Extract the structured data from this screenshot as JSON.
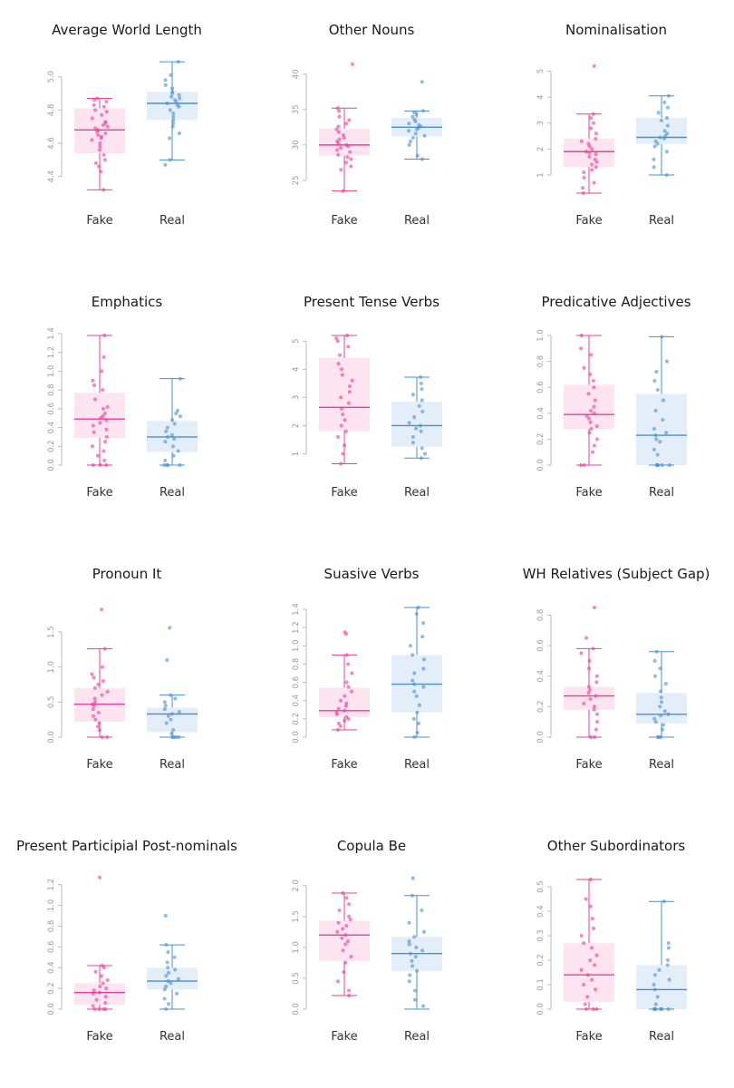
{
  "colors": {
    "fake": "#e8409a",
    "fake_box": "#fde4f0",
    "real": "#4a8fd0",
    "real_box": "#e4eef9",
    "axis": "#bbbbbb"
  },
  "chart_data": [
    {
      "type": "box",
      "title": "Average World Length",
      "categories": [
        "Fake",
        "Real"
      ],
      "ylim": [
        4.3,
        5.08
      ],
      "yticks": [
        4.4,
        4.6,
        4.8,
        5.0
      ],
      "tick_labels": [
        "4.4",
        "4.6",
        "4.8",
        "5.0"
      ],
      "series": [
        {
          "name": "Fake",
          "min": 4.32,
          "q1": 4.54,
          "median": 4.68,
          "q3": 4.81,
          "max": 4.87,
          "points": [
            4.32,
            4.43,
            4.46,
            4.48,
            4.5,
            4.53,
            4.56,
            4.58,
            4.6,
            4.62,
            4.63,
            4.64,
            4.65,
            4.66,
            4.67,
            4.68,
            4.69,
            4.7,
            4.71,
            4.72,
            4.73,
            4.75,
            4.77,
            4.79,
            4.8,
            4.82,
            4.83,
            4.85,
            4.86,
            4.87
          ]
        },
        {
          "name": "Real",
          "min": 4.5,
          "q1": 4.74,
          "median": 4.84,
          "q3": 4.91,
          "max": 5.09,
          "points": [
            4.47,
            4.5,
            4.63,
            4.66,
            4.7,
            4.72,
            4.74,
            4.76,
            4.78,
            4.8,
            4.82,
            4.83,
            4.84,
            4.85,
            4.86,
            4.87,
            4.88,
            4.89,
            4.9,
            4.91,
            4.93,
            4.95,
            4.98,
            5.01,
            5.09
          ]
        }
      ]
    },
    {
      "type": "box",
      "title": "Other Nouns",
      "categories": [
        "Fake",
        "Real"
      ],
      "ylim": [
        23.2,
        41.5
      ],
      "yticks": [
        25,
        30,
        35,
        40
      ],
      "tick_labels": [
        "25",
        "30",
        "35",
        "40"
      ],
      "series": [
        {
          "name": "Fake",
          "min": 23.5,
          "q1": 28.5,
          "median": 30.0,
          "q3": 32.3,
          "max": 35.2,
          "points": [
            23.5,
            26.5,
            27.0,
            27.5,
            28.0,
            28.3,
            28.6,
            29.0,
            29.3,
            29.6,
            29.8,
            30.0,
            30.2,
            30.5,
            30.8,
            31.0,
            31.4,
            31.8,
            32.2,
            32.6,
            33.0,
            33.5,
            34.0,
            34.8,
            35.2,
            41.4
          ]
        },
        {
          "name": "Real",
          "min": 28.0,
          "q1": 31.2,
          "median": 32.5,
          "q3": 33.8,
          "max": 34.8,
          "points": [
            28.0,
            28.5,
            30.0,
            30.5,
            31.0,
            31.3,
            31.6,
            32.0,
            32.2,
            32.4,
            32.6,
            32.8,
            33.0,
            33.3,
            33.6,
            34.0,
            34.3,
            34.6,
            34.8,
            38.9
          ]
        }
      ]
    },
    {
      "type": "box",
      "title": "Nominalisation",
      "categories": [
        "Fake",
        "Real"
      ],
      "ylim": [
        0.3,
        5.3
      ],
      "yticks": [
        1,
        2,
        3,
        4,
        5
      ],
      "tick_labels": [
        "1",
        "2",
        "3",
        "4",
        "5"
      ],
      "series": [
        {
          "name": "Fake",
          "min": 0.3,
          "q1": 1.3,
          "median": 1.9,
          "q3": 2.4,
          "max": 3.35,
          "points": [
            0.3,
            0.5,
            0.7,
            0.9,
            1.1,
            1.2,
            1.3,
            1.4,
            1.5,
            1.6,
            1.7,
            1.8,
            1.85,
            1.9,
            2.0,
            2.1,
            2.2,
            2.3,
            2.4,
            2.6,
            2.8,
            3.0,
            3.2,
            3.35,
            5.2
          ]
        },
        {
          "name": "Real",
          "min": 1.0,
          "q1": 2.2,
          "median": 2.45,
          "q3": 3.2,
          "max": 4.05,
          "points": [
            1.0,
            1.3,
            1.6,
            1.9,
            2.1,
            2.2,
            2.3,
            2.4,
            2.45,
            2.5,
            2.6,
            2.7,
            2.9,
            3.1,
            3.2,
            3.4,
            3.6,
            3.8,
            4.05
          ]
        }
      ]
    },
    {
      "type": "box",
      "title": "Emphatics",
      "categories": [
        "Fake",
        "Real"
      ],
      "ylim": [
        0,
        1.38
      ],
      "yticks": [
        0.0,
        0.2,
        0.4,
        0.6,
        0.8,
        1.0,
        1.2,
        1.4
      ],
      "tick_labels": [
        "0.0",
        "0.2",
        "0.4",
        "0.6",
        "0.8",
        "1.0",
        "1.2",
        "1.4"
      ],
      "series": [
        {
          "name": "Fake",
          "min": 0.0,
          "q1": 0.29,
          "median": 0.49,
          "q3": 0.77,
          "max": 1.38,
          "points": [
            0.0,
            0.0,
            0.0,
            0.05,
            0.1,
            0.15,
            0.2,
            0.25,
            0.3,
            0.35,
            0.38,
            0.42,
            0.45,
            0.48,
            0.5,
            0.52,
            0.55,
            0.6,
            0.62,
            0.7,
            0.8,
            0.85,
            0.9,
            1.0,
            1.15,
            1.38
          ]
        },
        {
          "name": "Real",
          "min": 0.0,
          "q1": 0.14,
          "median": 0.3,
          "q3": 0.47,
          "max": 0.92,
          "points": [
            0.0,
            0.0,
            0.0,
            0.0,
            0.05,
            0.1,
            0.15,
            0.2,
            0.25,
            0.28,
            0.3,
            0.32,
            0.36,
            0.4,
            0.44,
            0.48,
            0.52,
            0.55,
            0.58,
            0.92
          ]
        }
      ]
    },
    {
      "type": "box",
      "title": "Present Tense Verbs",
      "categories": [
        "Fake",
        "Real"
      ],
      "ylim": [
        0.6,
        5.2
      ],
      "yticks": [
        1,
        2,
        3,
        4,
        5
      ],
      "tick_labels": [
        "1",
        "2",
        "3",
        "4",
        "5"
      ],
      "series": [
        {
          "name": "Fake",
          "min": 0.65,
          "q1": 1.8,
          "median": 2.65,
          "q3": 4.4,
          "max": 5.2,
          "points": [
            0.65,
            1.0,
            1.3,
            1.6,
            1.8,
            2.0,
            2.2,
            2.4,
            2.6,
            2.8,
            3.0,
            3.2,
            3.4,
            3.6,
            3.8,
            4.0,
            4.2,
            4.5,
            4.8,
            5.0,
            5.1,
            5.2
          ]
        },
        {
          "name": "Real",
          "min": 0.85,
          "q1": 1.25,
          "median": 2.0,
          "q3": 2.85,
          "max": 3.72,
          "points": [
            0.85,
            1.0,
            1.2,
            1.4,
            1.6,
            1.8,
            1.9,
            2.0,
            2.1,
            2.3,
            2.5,
            2.7,
            2.9,
            3.1,
            3.3,
            3.5,
            3.72
          ]
        }
      ]
    },
    {
      "type": "box",
      "title": "Predicative Adjectives",
      "categories": [
        "Fake",
        "Real"
      ],
      "ylim": [
        0,
        1.0
      ],
      "yticks": [
        0.0,
        0.2,
        0.4,
        0.6,
        0.8,
        1.0
      ],
      "tick_labels": [
        "0.0",
        "0.2",
        "0.4",
        "0.6",
        "0.8",
        "1.0"
      ],
      "series": [
        {
          "name": "Fake",
          "min": 0.0,
          "q1": 0.28,
          "median": 0.39,
          "q3": 0.62,
          "max": 1.0,
          "points": [
            0.0,
            0.0,
            0.1,
            0.15,
            0.2,
            0.25,
            0.28,
            0.3,
            0.33,
            0.36,
            0.38,
            0.4,
            0.42,
            0.45,
            0.5,
            0.55,
            0.6,
            0.65,
            0.7,
            0.75,
            0.85,
            0.9,
            1.0
          ]
        },
        {
          "name": "Real",
          "min": 0.0,
          "q1": 0.0,
          "median": 0.23,
          "q3": 0.55,
          "max": 0.99,
          "points": [
            0.0,
            0.0,
            0.0,
            0.0,
            0.0,
            0.08,
            0.12,
            0.18,
            0.2,
            0.23,
            0.25,
            0.28,
            0.35,
            0.42,
            0.5,
            0.58,
            0.65,
            0.72,
            0.8,
            0.99
          ]
        }
      ]
    },
    {
      "type": "box",
      "title": "Pronoun It",
      "categories": [
        "Fake",
        "Real"
      ],
      "ylim": [
        0,
        1.85
      ],
      "yticks": [
        0.0,
        0.5,
        1.0,
        1.5
      ],
      "tick_labels": [
        "0.0",
        "0.5",
        "1.0",
        "1.5"
      ],
      "series": [
        {
          "name": "Fake",
          "min": 0.0,
          "q1": 0.22,
          "median": 0.47,
          "q3": 0.7,
          "max": 1.26,
          "points": [
            0.0,
            0.0,
            0.1,
            0.15,
            0.2,
            0.25,
            0.3,
            0.35,
            0.4,
            0.45,
            0.47,
            0.5,
            0.55,
            0.6,
            0.65,
            0.7,
            0.75,
            0.8,
            0.85,
            0.9,
            1.0,
            1.26,
            1.82
          ]
        },
        {
          "name": "Real",
          "min": 0.0,
          "q1": 0.07,
          "median": 0.33,
          "q3": 0.42,
          "max": 0.6,
          "points": [
            0.0,
            0.0,
            0.0,
            0.0,
            0.05,
            0.1,
            0.2,
            0.25,
            0.3,
            0.33,
            0.36,
            0.4,
            0.45,
            0.5,
            0.55,
            0.6,
            1.1,
            1.56
          ]
        }
      ]
    },
    {
      "type": "box",
      "title": "Suasive Verbs",
      "categories": [
        "Fake",
        "Real"
      ],
      "ylim": [
        0,
        1.42
      ],
      "yticks": [
        0.0,
        0.2,
        0.4,
        0.6,
        0.8,
        1.0,
        1.2,
        1.4
      ],
      "tick_labels": [
        "0.0",
        "0.2",
        "0.4",
        "0.6",
        "0.8",
        "1.0",
        "1.2",
        "1.4"
      ],
      "series": [
        {
          "name": "Fake",
          "min": 0.08,
          "q1": 0.22,
          "median": 0.29,
          "q3": 0.54,
          "max": 0.9,
          "points": [
            0.08,
            0.12,
            0.15,
            0.18,
            0.2,
            0.22,
            0.25,
            0.27,
            0.29,
            0.31,
            0.34,
            0.37,
            0.4,
            0.45,
            0.5,
            0.55,
            0.6,
            0.7,
            0.8,
            0.9,
            1.13,
            1.15
          ]
        },
        {
          "name": "Real",
          "min": 0.0,
          "q1": 0.27,
          "median": 0.58,
          "q3": 0.9,
          "max": 1.42,
          "points": [
            0.0,
            0.05,
            0.15,
            0.2,
            0.27,
            0.35,
            0.45,
            0.5,
            0.55,
            0.58,
            0.62,
            0.7,
            0.75,
            0.85,
            0.9,
            1.0,
            1.1,
            1.25,
            1.35,
            1.42
          ]
        }
      ]
    },
    {
      "type": "box",
      "title": "WH Relatives (Subject Gap)",
      "categories": [
        "Fake",
        "Real"
      ],
      "ylim": [
        0,
        0.85
      ],
      "yticks": [
        0.0,
        0.2,
        0.4,
        0.6,
        0.8
      ],
      "tick_labels": [
        "0.0",
        "0.2",
        "0.4",
        "0.6",
        "0.8"
      ],
      "series": [
        {
          "name": "Fake",
          "min": 0.0,
          "q1": 0.18,
          "median": 0.27,
          "q3": 0.33,
          "max": 0.58,
          "points": [
            0.0,
            0.0,
            0.05,
            0.1,
            0.15,
            0.18,
            0.2,
            0.22,
            0.25,
            0.27,
            0.29,
            0.31,
            0.33,
            0.36,
            0.4,
            0.45,
            0.5,
            0.55,
            0.58,
            0.65,
            0.85
          ]
        },
        {
          "name": "Real",
          "min": 0.0,
          "q1": 0.09,
          "median": 0.15,
          "q3": 0.29,
          "max": 0.56,
          "points": [
            0.0,
            0.0,
            0.0,
            0.05,
            0.08,
            0.1,
            0.12,
            0.14,
            0.15,
            0.17,
            0.2,
            0.23,
            0.26,
            0.3,
            0.35,
            0.4,
            0.45,
            0.5,
            0.56
          ]
        }
      ]
    },
    {
      "type": "box",
      "title": "Present Participial Post-nominals",
      "categories": [
        "Fake",
        "Real"
      ],
      "ylim": [
        0,
        1.25
      ],
      "yticks": [
        0.0,
        0.2,
        0.4,
        0.6,
        0.8,
        1.0,
        1.2
      ],
      "tick_labels": [
        "0.0",
        "0.2",
        "0.4",
        "0.6",
        "0.8",
        "1.0",
        "1.2"
      ],
      "series": [
        {
          "name": "Fake",
          "min": 0.0,
          "q1": 0.04,
          "median": 0.16,
          "q3": 0.25,
          "max": 0.42,
          "points": [
            0.0,
            0.0,
            0.0,
            0.0,
            0.03,
            0.06,
            0.09,
            0.12,
            0.15,
            0.16,
            0.18,
            0.2,
            0.22,
            0.25,
            0.28,
            0.32,
            0.36,
            0.4,
            0.42,
            1.27
          ]
        },
        {
          "name": "Real",
          "min": 0.0,
          "q1": 0.19,
          "median": 0.27,
          "q3": 0.4,
          "max": 0.62,
          "points": [
            0.0,
            0.05,
            0.1,
            0.15,
            0.19,
            0.22,
            0.25,
            0.27,
            0.29,
            0.32,
            0.35,
            0.38,
            0.4,
            0.45,
            0.5,
            0.55,
            0.62,
            0.9
          ]
        }
      ]
    },
    {
      "type": "box",
      "title": "Copula Be",
      "categories": [
        "Fake",
        "Real"
      ],
      "ylim": [
        0,
        2.1
      ],
      "yticks": [
        0.0,
        0.5,
        1.0,
        1.5,
        2.0
      ],
      "tick_labels": [
        "0.0",
        "0.5",
        "1.0",
        "1.5",
        "2.0"
      ],
      "series": [
        {
          "name": "Fake",
          "min": 0.22,
          "q1": 0.78,
          "median": 1.2,
          "q3": 1.43,
          "max": 1.88,
          "points": [
            0.22,
            0.3,
            0.45,
            0.6,
            0.75,
            0.85,
            0.95,
            1.05,
            1.1,
            1.15,
            1.2,
            1.25,
            1.3,
            1.35,
            1.4,
            1.45,
            1.5,
            1.6,
            1.7,
            1.8,
            1.88
          ]
        },
        {
          "name": "Real",
          "min": 0.0,
          "q1": 0.62,
          "median": 0.9,
          "q3": 1.17,
          "max": 1.84,
          "points": [
            0.05,
            0.15,
            0.3,
            0.45,
            0.55,
            0.62,
            0.7,
            0.78,
            0.85,
            0.9,
            0.95,
            1.0,
            1.05,
            1.1,
            1.17,
            1.25,
            1.4,
            1.6,
            1.84,
            2.12
          ]
        }
      ]
    },
    {
      "type": "box",
      "title": "Other Subordinators",
      "categories": [
        "Fake",
        "Real"
      ],
      "ylim": [
        0,
        0.53
      ],
      "yticks": [
        0.0,
        0.1,
        0.2,
        0.3,
        0.4,
        0.5
      ],
      "tick_labels": [
        "0.0",
        "0.1",
        "0.2",
        "0.3",
        "0.4",
        "0.5"
      ],
      "series": [
        {
          "name": "Fake",
          "min": 0.0,
          "q1": 0.03,
          "median": 0.14,
          "q3": 0.27,
          "max": 0.53,
          "points": [
            0.0,
            0.0,
            0.0,
            0.02,
            0.05,
            0.08,
            0.1,
            0.12,
            0.14,
            0.16,
            0.18,
            0.2,
            0.22,
            0.25,
            0.27,
            0.3,
            0.33,
            0.37,
            0.42,
            0.45,
            0.53
          ]
        },
        {
          "name": "Real",
          "min": 0.0,
          "q1": 0.0,
          "median": 0.08,
          "q3": 0.18,
          "max": 0.44,
          "points": [
            0.0,
            0.0,
            0.0,
            0.0,
            0.0,
            0.0,
            0.02,
            0.05,
            0.08,
            0.1,
            0.12,
            0.14,
            0.16,
            0.18,
            0.2,
            0.25,
            0.27,
            0.44
          ]
        }
      ]
    }
  ]
}
